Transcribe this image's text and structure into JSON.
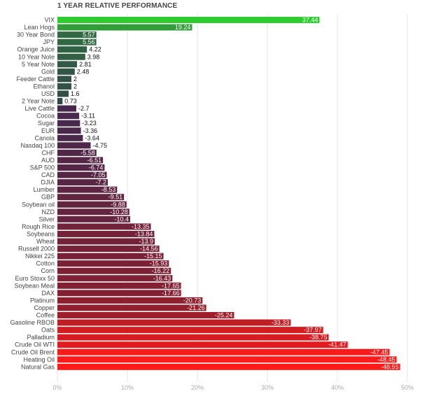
{
  "chart_data": {
    "type": "bar",
    "orientation": "horizontal",
    "title": "1 YEAR RELATIVE PERFORMANCE",
    "categories": [
      "VIX",
      "Lean Hogs",
      "30 Year Bond",
      "JPY",
      "Orange Juice",
      "10 Year Note",
      "5 Year Note",
      "Gold",
      "Feeder Cattle",
      "Ethanol",
      "USD",
      "2 Year Note",
      "Live Cattle",
      "Cocoa",
      "Sugar",
      "EUR",
      "Canola",
      "Nasdaq 100",
      "CHF",
      "AUD",
      "S&P 500",
      "CAD",
      "DJIA",
      "Lumber",
      "GBP",
      "Soybean oil",
      "NZD",
      "Silver",
      "Rough Rice",
      "Soybeans",
      "Wheat",
      "Russell 2000",
      "Nikkei 225",
      "Cotton",
      "Corn",
      "Euro Stoxx 50",
      "Soybean Meal",
      "DAX",
      "Platinum",
      "Copper",
      "Coffee",
      "Gasoline RBOB",
      "Oats",
      "Palladium",
      "Crude Oil WTI",
      "Crude Oil Brent",
      "Heating Oil",
      "Natural Gas"
    ],
    "values": [
      37.44,
      19.24,
      5.57,
      5.56,
      4.22,
      3.98,
      2.81,
      2.48,
      2,
      2,
      1.6,
      0.73,
      -2.7,
      -3.11,
      -3.23,
      -3.36,
      -3.64,
      -4.75,
      -5.58,
      -6.51,
      -6.74,
      -7.05,
      -7.2,
      -8.53,
      -9.51,
      -9.88,
      -10.28,
      -10.4,
      -13.35,
      -13.84,
      -13.9,
      -14.56,
      -15.15,
      -15.93,
      -16.22,
      -16.43,
      -17.65,
      -17.66,
      -20.73,
      -21.26,
      -25.24,
      -33.33,
      -37.97,
      -38.75,
      -41.47,
      -47.45,
      -48.45,
      -48.95
    ],
    "value_labels": [
      "37.44",
      "19.24",
      "5.57",
      "5.56",
      "4.22",
      "3.98",
      "2.81",
      "2.48",
      "2",
      "2",
      "1.6",
      "0.73",
      "-2.7",
      "-3.11",
      "-3.23",
      "-3.36",
      "-3.64",
      "-4.75",
      "-5.58",
      "-6.51",
      "-6.74",
      "-7.05",
      "-7.2",
      "-8.53",
      "-9.51",
      "-9.88",
      "-10.28",
      "-10.4",
      "-13.35",
      "-13.84",
      "-13.9",
      "-14.56",
      "-15.15",
      "-15.93",
      "-16.22",
      "-16.43",
      "-17.65",
      "-17.66",
      "-20.73",
      "-21.26",
      "-25.24",
      "-33.33",
      "-37.97",
      "-38.75",
      "-41.47",
      "-47.45",
      "-48.45",
      "-48.95"
    ],
    "x_ticks": [
      "0%",
      "10%",
      "20%",
      "30%",
      "40%",
      "50%"
    ],
    "xlim": [
      0,
      50
    ],
    "bar_length": "absolute value",
    "grid": true,
    "colors": {
      "positive_high": "#2ecc2e",
      "positive_low": "#33334d",
      "negative_low": "#3b2a52",
      "negative_mid": "#8a1f2e",
      "negative_high": "#ff1a1a",
      "grid": "#e4e4e4",
      "axis_text": "#aaaaaa",
      "label_text": "#444444",
      "value_text_inside": "#ffffff",
      "value_text_outside": "#111111"
    }
  }
}
